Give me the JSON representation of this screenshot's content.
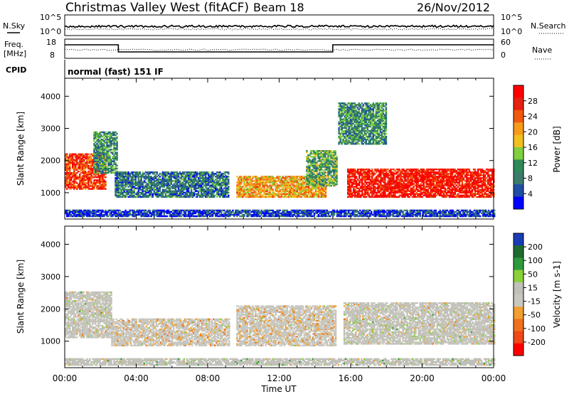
{
  "header": {
    "station": "Christmas Valley West (fitACF)",
    "beam": "Beam 18",
    "date": "26/Nov/2012"
  },
  "strip_panels": {
    "nsky_label": "N.Sky",
    "nsearch_label": "N.Search",
    "nsky_ticks": [
      "10^5",
      "10^0"
    ],
    "nsearch_ticks": [
      "10^5",
      "10^0"
    ],
    "freq_label_1": "Freq.",
    "freq_label_2": "[MHz]",
    "freq_ticks": [
      "18",
      "8"
    ],
    "nave_label": "Nave",
    "nave_ticks": [
      "60",
      "0"
    ],
    "cpid_label": "CPID",
    "cpid_value": "normal (fast) 151 IF"
  },
  "colors": {
    "power_scale": [
      "#0000ff",
      "#1f4ea3",
      "#3c7b6b",
      "#2e8b57",
      "#7fcf3f",
      "#f0c020",
      "#f89a1a",
      "#f05a10",
      "#e82010",
      "#ff0000"
    ],
    "velocity_scale": [
      "#1a3bb3",
      "#1f6b2e",
      "#2f9a3a",
      "#8bd13a",
      "#c0c0b8",
      "#c8c8c0",
      "#f0a030",
      "#f07020",
      "#f04818",
      "#ff0000"
    ]
  },
  "chart_data": [
    {
      "type": "heatmap",
      "name": "power",
      "title": "",
      "xlabel": "",
      "ylabel": "Slant Range [km]",
      "x_ticks": [
        "00:00",
        "04:00",
        "08:00",
        "12:00",
        "16:00",
        "20:00",
        "00:00"
      ],
      "x_range_hours": [
        0,
        24
      ],
      "y_ticks": [
        1000,
        2000,
        3000,
        4000
      ],
      "y_range": [
        180,
        4560
      ],
      "colorbar_label": "Power [dB]",
      "colorbar_ticks": [
        4,
        8,
        12,
        16,
        20,
        24,
        28
      ],
      "colorbar_range": [
        0,
        32
      ],
      "regions": [
        {
          "t0": 0.0,
          "t1": 2.3,
          "r0": 1100,
          "r1": 2200,
          "value": 26
        },
        {
          "t0": 1.6,
          "t1": 2.9,
          "r0": 1600,
          "r1": 2900,
          "value": 10
        },
        {
          "t0": 2.8,
          "t1": 9.2,
          "r0": 850,
          "r1": 1650,
          "value": 8
        },
        {
          "t0": 9.6,
          "t1": 14.6,
          "r0": 850,
          "r1": 1500,
          "value": 20
        },
        {
          "t0": 13.5,
          "t1": 15.2,
          "r0": 1200,
          "r1": 2300,
          "value": 12
        },
        {
          "t0": 15.8,
          "t1": 24.0,
          "r0": 850,
          "r1": 1750,
          "value": 29
        },
        {
          "t0": 15.3,
          "t1": 18.0,
          "r0": 2500,
          "r1": 3800,
          "value": 10
        },
        {
          "t0": 0.0,
          "t1": 24.0,
          "r0": 250,
          "r1": 450,
          "value": 4
        }
      ]
    },
    {
      "type": "heatmap",
      "name": "velocity",
      "title": "",
      "xlabel": "Time UT",
      "ylabel": "Slant Range [km]",
      "x_ticks": [
        "00:00",
        "04:00",
        "08:00",
        "12:00",
        "16:00",
        "20:00",
        "00:00"
      ],
      "x_range_hours": [
        0,
        24
      ],
      "y_ticks": [
        1000,
        2000,
        3000,
        4000
      ],
      "y_range": [
        180,
        4560
      ],
      "colorbar_label": "Velocity [m s-1]",
      "colorbar_ticks": [
        200,
        100,
        50,
        15,
        -15,
        -50,
        -100,
        -200
      ],
      "regions": [
        {
          "t0": 0.0,
          "t1": 2.6,
          "r0": 1100,
          "r1": 2500,
          "value": 0
        },
        {
          "t0": 2.6,
          "t1": 9.2,
          "r0": 850,
          "r1": 1700,
          "value": -40
        },
        {
          "t0": 9.6,
          "t1": 15.2,
          "r0": 850,
          "r1": 2100,
          "value": -40
        },
        {
          "t0": 15.6,
          "t1": 24.0,
          "r0": 900,
          "r1": 2200,
          "value": 0
        },
        {
          "t0": 0.0,
          "t1": 24.0,
          "r0": 250,
          "r1": 450,
          "value": 30
        }
      ]
    }
  ]
}
